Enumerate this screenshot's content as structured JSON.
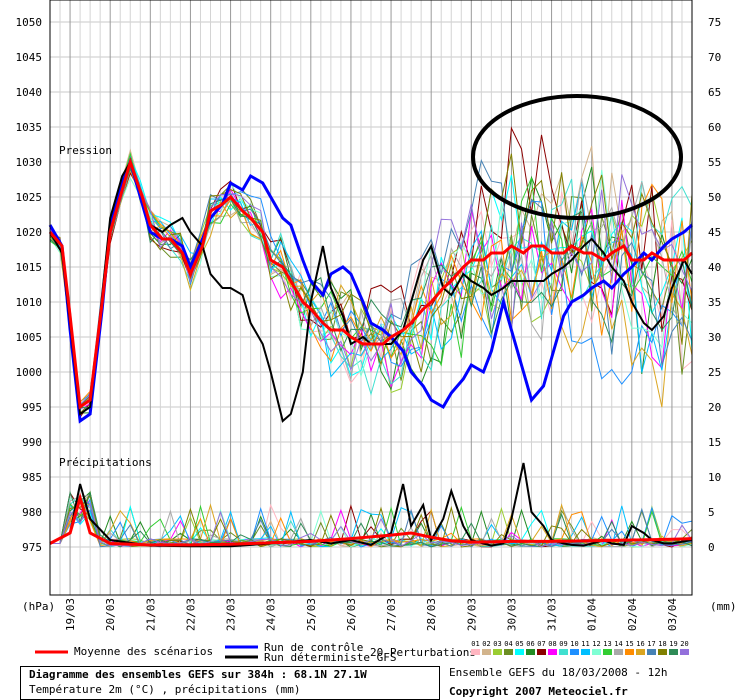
{
  "chart_data": {
    "type": "line",
    "section_labels": {
      "pressure": "Pression",
      "precip": "Précipitations"
    },
    "y_left_unit": "(hPa)",
    "y_right_unit": "(mm)",
    "y_left_ticks": [
      1050,
      1045,
      1040,
      1035,
      1030,
      1025,
      1020,
      1015,
      1010,
      1005,
      1000,
      995,
      990,
      985,
      980,
      975
    ],
    "y_right_ticks": [
      75,
      70,
      65,
      60,
      55,
      50,
      45,
      40,
      35,
      30,
      25,
      20,
      15,
      10,
      5,
      0
    ],
    "x_ticks": [
      "19/03",
      "20/03",
      "21/03",
      "22/03",
      "23/03",
      "24/03",
      "25/03",
      "26/03",
      "27/03",
      "28/03",
      "29/03",
      "30/03",
      "31/03",
      "01/04",
      "02/04",
      "03/04"
    ],
    "x_range_days": [
      18.5,
      34.5
    ],
    "ylim_left": [
      975,
      1050
    ],
    "series": [
      {
        "key": "mean",
        "color": "#ff0000",
        "width": 3,
        "x": [
          18.5,
          18.8,
          19.0,
          19.25,
          19.5,
          19.8,
          20.0,
          20.3,
          20.5,
          20.8,
          21.0,
          21.3,
          21.5,
          21.8,
          22.0,
          22.3,
          22.5,
          22.8,
          23.0,
          23.3,
          23.5,
          23.8,
          24.0,
          24.3,
          24.5,
          24.8,
          25.0,
          25.3,
          25.5,
          25.8,
          26.0,
          26.3,
          26.5,
          26.8,
          27.0,
          27.3,
          27.5,
          27.8,
          28.0,
          28.3,
          28.5,
          28.8,
          29.0,
          29.3,
          29.5,
          29.8,
          30.0,
          30.3,
          30.5,
          30.8,
          31.0,
          31.3,
          31.5,
          31.8,
          32.0,
          32.3,
          32.5,
          32.8,
          33.0,
          33.3,
          33.5,
          33.8,
          34.0,
          34.3,
          34.5
        ],
        "y": [
          1020,
          1018,
          1008,
          995,
          996,
          1010,
          1020,
          1026,
          1030,
          1025,
          1021,
          1019,
          1019,
          1017,
          1014,
          1018,
          1023,
          1024,
          1025,
          1023,
          1022,
          1020,
          1016,
          1015,
          1013,
          1010,
          1009,
          1007,
          1006,
          1006,
          1005,
          1004,
          1004,
          1004,
          1005,
          1006,
          1007,
          1009,
          1010,
          1012,
          1013,
          1015,
          1016,
          1016,
          1017,
          1017,
          1018,
          1017,
          1018,
          1018,
          1017,
          1017,
          1018,
          1017,
          1017,
          1016,
          1017,
          1018,
          1016,
          1016,
          1017,
          1016,
          1016,
          1016,
          1017
        ]
      },
      {
        "key": "control",
        "color": "#0000ff",
        "width": 3,
        "x": [
          18.5,
          18.8,
          19.0,
          19.25,
          19.5,
          19.8,
          20.0,
          20.3,
          20.5,
          20.8,
          21.0,
          21.3,
          21.5,
          21.8,
          22.0,
          22.3,
          22.5,
          22.8,
          23.0,
          23.3,
          23.5,
          23.8,
          24.0,
          24.3,
          24.5,
          24.8,
          25.0,
          25.3,
          25.5,
          25.8,
          26.0,
          26.3,
          26.5,
          26.8,
          27.0,
          27.3,
          27.5,
          27.8,
          28.0,
          28.3,
          28.5,
          28.8,
          29.0,
          29.3,
          29.5,
          29.8,
          30.0,
          30.3,
          30.5,
          30.8,
          31.0,
          31.3,
          31.5,
          31.8,
          32.0,
          32.3,
          32.5,
          32.8,
          33.0,
          33.3,
          33.5,
          33.8,
          34.0,
          34.3,
          34.5
        ],
        "y": [
          1021,
          1018,
          1006,
          993,
          994,
          1009,
          1021,
          1027,
          1030,
          1024,
          1020,
          1019,
          1019,
          1018,
          1015,
          1019,
          1022,
          1024,
          1027,
          1026,
          1028,
          1027,
          1025,
          1022,
          1021,
          1016,
          1013,
          1011,
          1014,
          1015,
          1014,
          1010,
          1007,
          1006,
          1005,
          1003,
          1000,
          998,
          996,
          995,
          997,
          999,
          1001,
          1000,
          1003,
          1010,
          1006,
          1000,
          996,
          998,
          1002,
          1008,
          1010,
          1011,
          1012,
          1013,
          1012,
          1014,
          1015,
          1017,
          1016,
          1018,
          1019,
          1020,
          1021
        ]
      },
      {
        "key": "det",
        "color": "#000000",
        "width": 2,
        "x": [
          18.5,
          18.8,
          19.0,
          19.25,
          19.5,
          19.8,
          20.0,
          20.3,
          20.5,
          20.8,
          21.0,
          21.3,
          21.5,
          21.8,
          22.0,
          22.3,
          22.5,
          22.8,
          23.0,
          23.3,
          23.5,
          23.8,
          24.0,
          24.3,
          24.5,
          24.8,
          25.0,
          25.3,
          25.5,
          25.8,
          26.0,
          26.3,
          26.5,
          26.8,
          27.0,
          27.3,
          27.5,
          27.8,
          28.0,
          28.3,
          28.5,
          28.8,
          29.0,
          29.3,
          29.5,
          29.8,
          30.0,
          30.3,
          30.5,
          30.8,
          31.0,
          31.3,
          31.5,
          31.8,
          32.0,
          32.3,
          32.5,
          32.8,
          33.0,
          33.3,
          33.5,
          33.8,
          34.0,
          34.3,
          34.5
        ],
        "y": [
          1020,
          1017,
          1007,
          994,
          995,
          1011,
          1022,
          1028,
          1030,
          1025,
          1021,
          1020,
          1021,
          1022,
          1020,
          1018,
          1014,
          1012,
          1012,
          1011,
          1007,
          1004,
          1000,
          993,
          994,
          1000,
          1010,
          1018,
          1012,
          1008,
          1004,
          1005,
          1004,
          1004,
          1004,
          1006,
          1010,
          1016,
          1018,
          1012,
          1011,
          1014,
          1013,
          1012,
          1011,
          1012,
          1013,
          1013,
          1013,
          1013,
          1014,
          1015,
          1016,
          1018,
          1019,
          1017,
          1015,
          1013,
          1010,
          1007,
          1006,
          1008,
          1012,
          1016,
          1014
        ]
      }
    ],
    "precip_series": [
      {
        "key": "mean_p",
        "color": "#ff0000",
        "width": 3,
        "x": [
          18.5,
          19.0,
          19.25,
          19.5,
          20.0,
          21.0,
          22.0,
          23.0,
          24.0,
          25.0,
          26.0,
          27.0,
          27.5,
          28.0,
          28.5,
          29.0,
          30.0,
          31.0,
          32.0,
          33.0,
          34.0,
          34.5
        ],
        "y": [
          0.5,
          2,
          7,
          2,
          0.5,
          0.3,
          0.3,
          0.4,
          0.6,
          0.8,
          1.2,
          1.7,
          2.0,
          1.4,
          0.9,
          0.7,
          0.8,
          0.8,
          0.9,
          1.0,
          1.1,
          1.2
        ]
      },
      {
        "key": "det_p",
        "color": "#000000",
        "width": 2,
        "x": [
          18.5,
          19.0,
          19.25,
          19.5,
          20.0,
          21.0,
          22.0,
          23.0,
          24.0,
          25.0,
          25.5,
          26.0,
          26.5,
          27.0,
          27.3,
          27.5,
          27.8,
          28.0,
          28.3,
          28.5,
          28.8,
          29.0,
          29.3,
          29.5,
          29.8,
          30.0,
          30.3,
          30.5,
          30.8,
          31.0,
          31.3,
          31.5,
          31.8,
          32.0,
          32.3,
          32.5,
          32.8,
          33.0,
          33.3,
          33.5,
          33.8,
          34.0,
          34.5
        ],
        "y": [
          0.5,
          2,
          9,
          4,
          1,
          0.2,
          0.1,
          0.1,
          0.5,
          1,
          0.5,
          1,
          0.3,
          2,
          9,
          3,
          6,
          1,
          4,
          8,
          3,
          1,
          0.5,
          0.2,
          0.5,
          4,
          12,
          5,
          3,
          1,
          0.5,
          0.3,
          0.2,
          0.5,
          1,
          0.5,
          0.3,
          3,
          2,
          1,
          0.5,
          0.5,
          1
        ]
      }
    ],
    "perturbation_colors": [
      "#ffb6c1",
      "#d2b48c",
      "#9acd32",
      "#6b8e23",
      "#00ffff",
      "#228b22",
      "#8b0000",
      "#ff00ff",
      "#40e0d0",
      "#1e90ff",
      "#00bfff",
      "#7fffd4",
      "#32cd32",
      "#a9a9a9",
      "#ff8c00",
      "#daa520",
      "#4682b4",
      "#808000",
      "#2e8b57",
      "#9370db"
    ]
  },
  "legend": {
    "mean": "Moyenne des scénarios",
    "control": "Run de contrôle",
    "det": "Run déterministe GFS",
    "perturb": "20 Perturbations",
    "codes": [
      "01",
      "02",
      "03",
      "04",
      "05",
      "06",
      "07",
      "08",
      "09",
      "10",
      "11",
      "12",
      "13",
      "14",
      "15",
      "16",
      "17",
      "18",
      "19",
      "20"
    ]
  },
  "info": {
    "title": "Diagramme des ensembles GEFS sur 384h : 68.1N 27.1W",
    "subtitle": "Température 2m (°C) , précipitations (mm)",
    "run": "Ensemble GEFS du 18/03/2008 - 12h",
    "copyright": "Copyright 2007 Meteociel.fr"
  }
}
